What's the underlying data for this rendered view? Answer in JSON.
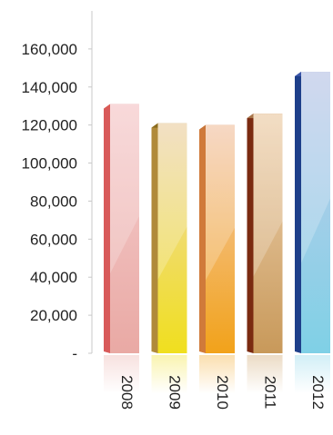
{
  "chart_data": {
    "type": "bar",
    "title": "",
    "xlabel": "",
    "ylabel": "",
    "categories": [
      "2008",
      "2009",
      "2010",
      "2011",
      "2012"
    ],
    "values": [
      131000,
      121000,
      120000,
      126000,
      148000
    ],
    "ylim": [
      0,
      180000
    ],
    "y_ticks": [
      {
        "value": 0,
        "label": "-"
      },
      {
        "value": 20000,
        "label": "20,000"
      },
      {
        "value": 40000,
        "label": "40,000"
      },
      {
        "value": 60000,
        "label": "60,000"
      },
      {
        "value": 80000,
        "label": "80,000"
      },
      {
        "value": 100000,
        "label": "100,000"
      },
      {
        "value": 120000,
        "label": "120,000"
      },
      {
        "value": 140000,
        "label": "140,000"
      },
      {
        "value": 160000,
        "label": "160,000"
      }
    ],
    "grid": false,
    "legend": "none",
    "bar_colors": [
      {
        "top": "#f6cfd0",
        "bottom": "#e9a9a4",
        "side": "#d85a5a",
        "cap": "#d95a55"
      },
      {
        "top": "#efd8b4",
        "bottom": "#f0df1e",
        "side": "#b08a3a",
        "cap": "#8a6b1e"
      },
      {
        "top": "#f4cdb4",
        "bottom": "#f2a21a",
        "side": "#d07a3a",
        "cap": "#c8763a"
      },
      {
        "top": "#efd4b4",
        "bottom": "#c8995a",
        "side": "#7a2a10",
        "cap": "#a8764a"
      },
      {
        "top": "#c4cdea",
        "bottom": "#7fd0e6",
        "side": "#1e3f8a",
        "cap": "#3a55a8"
      }
    ]
  }
}
